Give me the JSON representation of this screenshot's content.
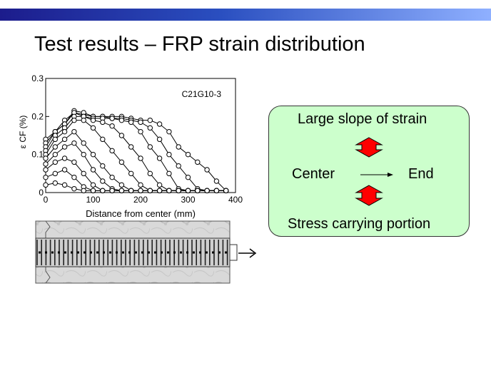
{
  "slide": {
    "title": "Test results – FRP strain distribution"
  },
  "panel": {
    "line1": "Large slope of strain",
    "center": "Center",
    "end": "End",
    "line3": "Stress carrying portion",
    "arrow_color": "#ff0000"
  },
  "colors": {
    "panel_bg": "#ccffcc",
    "bar_start": "#1c1c8c",
    "bar_end": "#8fb0ff"
  },
  "chart_data": {
    "type": "line",
    "title": "",
    "annotation": "C21G10-3",
    "xlabel": "Distance from center (mm)",
    "ylabel": "ε CF (%)",
    "xlim": [
      0,
      400
    ],
    "ylim": [
      0,
      0.3
    ],
    "xticks": [
      0,
      100,
      200,
      300,
      400
    ],
    "xtick_labels": [
      "0",
      "100",
      "200",
      "300",
      "400"
    ],
    "yticks": [
      0,
      0.1,
      0.2,
      0.3
    ],
    "ytick_labels": [
      "0",
      "0.1",
      "0.2",
      "0.3"
    ],
    "x": [
      0,
      20,
      40,
      60,
      80,
      100,
      120,
      140,
      160,
      180,
      200,
      220,
      240,
      260,
      280,
      300,
      320,
      340,
      360,
      380
    ],
    "series": [
      {
        "values": [
          0.14,
          0.16,
          0.19,
          0.21,
          0.205,
          0.2,
          0.2,
          0.2,
          0.2,
          0.195,
          0.19,
          0.19,
          0.18,
          0.16,
          0.12,
          0.1,
          0.08,
          0.06,
          0.03,
          0.005
        ]
      },
      {
        "values": [
          0.13,
          0.16,
          0.18,
          0.215,
          0.21,
          0.2,
          0.2,
          0.195,
          0.195,
          0.19,
          0.185,
          0.17,
          0.14,
          0.1,
          0.07,
          0.04,
          0.01,
          0.005,
          0.005,
          0.005
        ]
      },
      {
        "values": [
          0.12,
          0.16,
          0.18,
          0.21,
          0.2,
          0.195,
          0.195,
          0.195,
          0.19,
          0.185,
          0.16,
          0.12,
          0.09,
          0.05,
          0.01,
          0.005,
          0.005,
          0.005,
          0.005,
          0.005
        ]
      },
      {
        "values": [
          0.11,
          0.15,
          0.17,
          0.2,
          0.2,
          0.19,
          0.185,
          0.175,
          0.15,
          0.12,
          0.09,
          0.05,
          0.02,
          0.005,
          0.005,
          0.005,
          0.005,
          0.005,
          0.005,
          0.005
        ]
      },
      {
        "values": [
          0.1,
          0.14,
          0.16,
          0.19,
          0.19,
          0.17,
          0.14,
          0.11,
          0.08,
          0.05,
          0.02,
          0.005,
          0.005,
          0.005,
          0.005,
          0.005,
          0.005,
          0.005,
          0.005,
          0.005
        ]
      },
      {
        "values": [
          0.09,
          0.12,
          0.14,
          0.16,
          0.13,
          0.1,
          0.07,
          0.04,
          0.02,
          0.005,
          0.005,
          0.005,
          0.005,
          0.005,
          0.005,
          0.005,
          0.005,
          0.005,
          0.005,
          0.005
        ]
      },
      {
        "values": [
          0.075,
          0.1,
          0.12,
          0.13,
          0.1,
          0.06,
          0.03,
          0.01,
          0.005,
          0.005,
          0.005,
          0.005,
          0.005,
          0.005,
          0.005,
          0.005,
          0.005,
          0.005,
          0.005,
          0.005
        ]
      },
      {
        "values": [
          0.06,
          0.08,
          0.09,
          0.08,
          0.05,
          0.02,
          0.005,
          0.005,
          0.005,
          0.005,
          0.005,
          0.005,
          0.005,
          0.005,
          0.005,
          0.005,
          0.005,
          0.005,
          0.005,
          0.005
        ]
      },
      {
        "values": [
          0.04,
          0.05,
          0.06,
          0.04,
          0.015,
          0.005,
          0.005,
          0.005,
          0.005,
          0.005,
          0.005,
          0.005,
          0.005,
          0.005,
          0.005,
          0.005,
          0.005,
          0.005,
          0.005,
          0.005
        ]
      },
      {
        "values": [
          0.02,
          0.025,
          0.02,
          0.01,
          0.005,
          0.005,
          0.005,
          0.005,
          0.005,
          0.005,
          0.005,
          0.005,
          0.005,
          0.005,
          0.005,
          0.005,
          0.005,
          0.005,
          0.005,
          0.005
        ]
      }
    ],
    "grid": false,
    "marker": "open-circle"
  }
}
